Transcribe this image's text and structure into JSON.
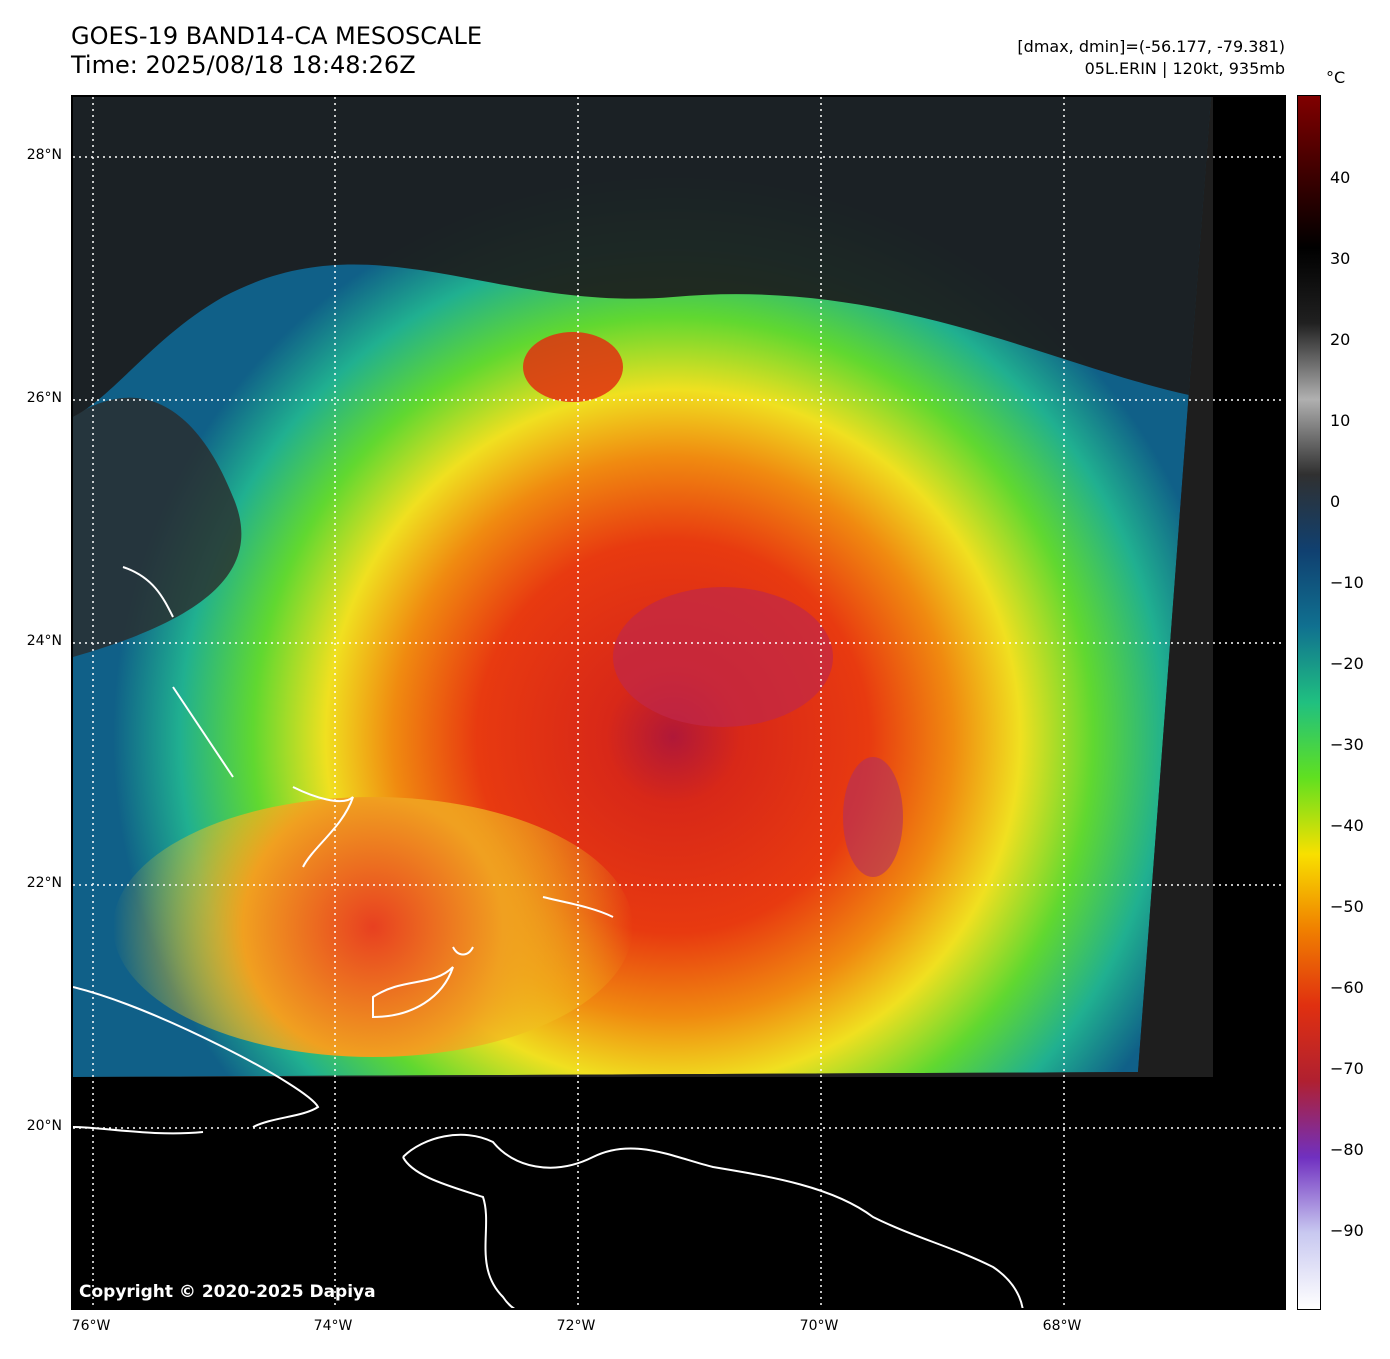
{
  "header": {
    "title_line1": "GOES-19 BAND14-CA MESOSCALE",
    "title_line2": "Time: 2025/08/18 18:48:26Z",
    "info_line1": "[dmax, dmin]=(-56.177, -79.381)",
    "info_line2": "05L.ERIN | 120kt, 935mb"
  },
  "map": {
    "lon_labels": [
      "76°W",
      "74°W",
      "72°W",
      "70°W",
      "68°W"
    ],
    "lat_labels": [
      "28°N",
      "26°N",
      "24°N",
      "22°N",
      "20°N"
    ],
    "copyright": "Copyright © 2020-2025 Dapiya"
  },
  "colorbar": {
    "unit": "°C",
    "tick_labels": [
      "40",
      "30",
      "20",
      "10",
      "0",
      "−10",
      "−20",
      "−30",
      "−40",
      "−50",
      "−60",
      "−70",
      "−80",
      "−90"
    ],
    "colors": [
      "#ffffff",
      "#c8c8f0",
      "#7030c0",
      "#b02030",
      "#e03010",
      "#f08000",
      "#f8e000",
      "#60e020",
      "#20c080",
      "#107090",
      "#104070",
      "#303030",
      "#b0b0b0",
      "#202020",
      "#000000",
      "#400000",
      "#800000"
    ]
  }
}
